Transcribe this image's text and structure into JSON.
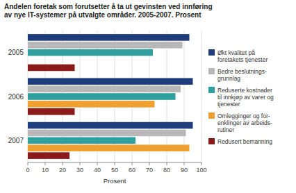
{
  "chart_data": {
    "type": "bar",
    "orientation": "horizontal",
    "title": "Andelen foretak som forutsetter å ta ut gevinsten ved innføring\nav nye IT-systemer på utvalgte områder. 2005-2007. Prosent",
    "categories": [
      "2005",
      "2006",
      "2007"
    ],
    "series": [
      {
        "name": "Økt kvalitet på\nforetakets tjenester",
        "color": "#1f3d7a",
        "values": [
          93,
          95,
          95
        ]
      },
      {
        "name": "Bedre beslutnings-\ngrunnlag",
        "color": "#b8b8b8",
        "values": [
          89,
          88,
          91
        ]
      },
      {
        "name": "Reduserte kostnader\ntil innkjøp av varer og\ntjenester",
        "color": "#2fa09e",
        "values": [
          72,
          85,
          62
        ]
      },
      {
        "name": "Omlegginger og for-\nenklinger av arbeids-\nrutiner",
        "color": "#f0a030",
        "values": [
          null,
          73,
          93
        ]
      },
      {
        "name": "Redusert bemanning",
        "color": "#8b1a1a",
        "values": [
          27,
          27,
          24
        ]
      }
    ],
    "xlabel": "Prosent",
    "xlim": [
      0,
      100
    ],
    "xticks": [
      0,
      10,
      20,
      30,
      40,
      50,
      60,
      70,
      80,
      90,
      100
    ],
    "grid": true,
    "legend": "right"
  }
}
